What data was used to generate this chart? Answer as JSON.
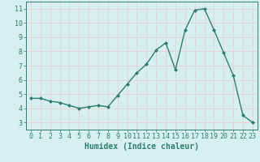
{
  "x": [
    0,
    1,
    2,
    3,
    4,
    5,
    6,
    7,
    8,
    9,
    10,
    11,
    12,
    13,
    14,
    15,
    16,
    17,
    18,
    19,
    20,
    21,
    22,
    23
  ],
  "y": [
    4.7,
    4.7,
    4.5,
    4.4,
    4.2,
    4.0,
    4.1,
    4.2,
    4.1,
    4.9,
    5.7,
    6.5,
    7.1,
    8.1,
    8.6,
    6.7,
    9.5,
    10.9,
    11.0,
    9.5,
    7.9,
    6.3,
    3.5,
    3.0
  ],
  "line_color": "#2e7d6e",
  "marker": "D",
  "marker_size": 2.0,
  "line_width": 1.0,
  "bg_color": "#d6f0f0",
  "grid_color": "#f0c8c8",
  "xlabel": "Humidex (Indice chaleur)",
  "xlabel_fontsize": 7,
  "tick_color": "#2e7d6e",
  "tick_label_color": "#2e7d6e",
  "ylim": [
    2.5,
    11.5
  ],
  "yticks": [
    3,
    4,
    5,
    6,
    7,
    8,
    9,
    10,
    11
  ],
  "xticks": [
    0,
    1,
    2,
    3,
    4,
    5,
    6,
    7,
    8,
    9,
    10,
    11,
    12,
    13,
    14,
    15,
    16,
    17,
    18,
    19,
    20,
    21,
    22,
    23
  ],
  "tick_fontsize": 6.0
}
